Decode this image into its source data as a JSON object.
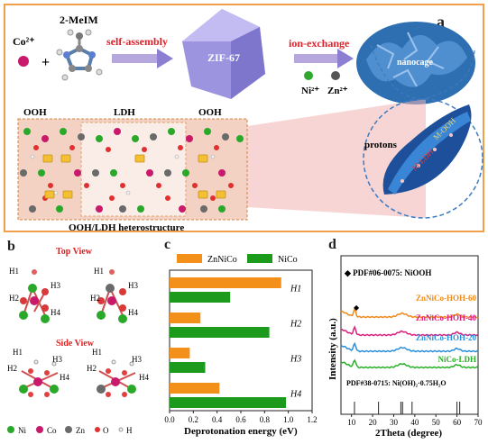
{
  "panel_a": {
    "label": "a",
    "reagent_ion": "Co²⁺",
    "plus": "+",
    "ligand": "2-MeIM",
    "step1": "self-assembly",
    "zif": "ZIF-67",
    "step2": "ion-exchange",
    "ions": [
      "Ni²⁺",
      "Zn²⁺"
    ],
    "nanocage": "nanocage",
    "zone_labels": [
      "OOH",
      "LDH",
      "OOH"
    ],
    "structure_caption": "OOH/LDH heterostructure",
    "protons": "protons",
    "sheet_labels": [
      "M-OOH",
      "M-LDH"
    ]
  },
  "panel_b": {
    "label": "b",
    "top_view": "Top View",
    "side_view": "Side View",
    "site_labels": [
      "H1",
      "H2",
      "H3",
      "H4"
    ],
    "legend": [
      "Ni",
      "Co",
      "Zn",
      "O",
      "H"
    ]
  },
  "panel_c": {
    "label": "c",
    "chart_data": {
      "type": "bar",
      "orientation": "horizontal",
      "categories": [
        "H1",
        "H2",
        "H3",
        "H4"
      ],
      "series": [
        {
          "name": "ZnNiCo",
          "color": "#f39019",
          "values": [
            0.94,
            0.26,
            0.17,
            0.42
          ]
        },
        {
          "name": "NiCo",
          "color": "#1c9a1c",
          "values": [
            0.51,
            0.84,
            0.3,
            0.98
          ]
        }
      ],
      "xlabel": "Deprotonation energy (eV)",
      "xlim": [
        0.0,
        1.2
      ],
      "xticks": [
        "0.0",
        "0.2",
        "0.4",
        "0.6",
        "0.8",
        "1.0",
        "1.2"
      ],
      "legend_position": "top"
    }
  },
  "panel_d": {
    "label": "d",
    "chart_data": {
      "type": "line",
      "xlabel": "2Theta (degree)",
      "ylabel": "Intensity (a.u.)",
      "xlim": [
        5,
        70
      ],
      "xticks": [
        "10",
        "20",
        "30",
        "40",
        "50",
        "60",
        "70"
      ],
      "annotation_top": "◆ PDF#06-0075: NiOOH",
      "annotation_bottom": "PDF#38-0715: Ni(OH)₂·0.75H₂O",
      "series": [
        {
          "name": "ZnNiCo-HOH-60",
          "color": "#f08a1c"
        },
        {
          "name": "ZnNiCo-HOH-40",
          "color": "#d8207e"
        },
        {
          "name": "ZnNiCo-HOH-20",
          "color": "#2a8fd8"
        },
        {
          "name": "NiCo-LDH",
          "color": "#2ab02a"
        }
      ],
      "reference_peaks": [
        11.4,
        22.8,
        33.4,
        34.2,
        38.7,
        60.0,
        61.3
      ],
      "marker_peak": 12.3
    }
  }
}
